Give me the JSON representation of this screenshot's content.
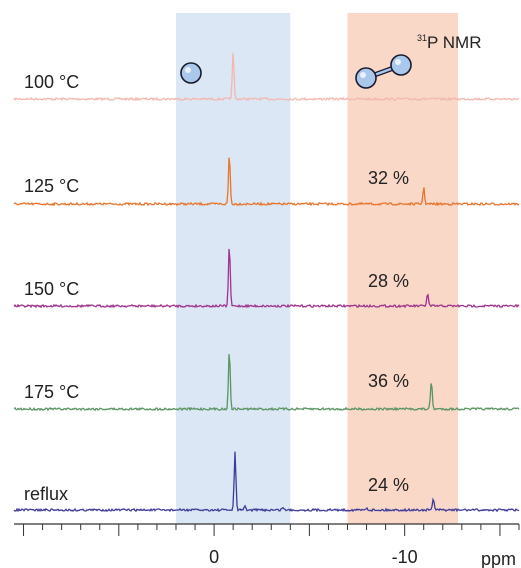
{
  "chart_data": {
    "type": "line",
    "title": "",
    "nucleus_label": {
      "sup": "31",
      "text": "P NMR"
    },
    "xlabel": "ppm",
    "xlim": [
      10.5,
      -16
    ],
    "x_direction": "reversed",
    "x_ticks": [
      {
        "value": 0,
        "label": "0"
      },
      {
        "value": -10,
        "label": "-10"
      }
    ],
    "highlight_regions": [
      {
        "name": "monomer",
        "x_range": [
          2,
          -4
        ],
        "color": "#dbe7f4",
        "icon": "single-sphere-icon"
      },
      {
        "name": "dimer",
        "x_range": [
          -7,
          -12.8
        ],
        "color": "#f9d8c8",
        "icon": "two-spheres-dimer-icon"
      }
    ],
    "series": [
      {
        "name": "100 °C",
        "color": "#f2b8b0",
        "peaks": [
          {
            "x": -1.0,
            "height": 1.0
          }
        ],
        "percent": ""
      },
      {
        "name": "125 °C",
        "color": "#e8742c",
        "peaks": [
          {
            "x": -0.8,
            "height": 1.0
          },
          {
            "x": -11.0,
            "height": 0.33
          }
        ],
        "percent": "32 %"
      },
      {
        "name": "150 °C",
        "color": "#a0338f",
        "peaks": [
          {
            "x": -0.8,
            "height": 1.0
          },
          {
            "x": -11.2,
            "height": 0.2
          }
        ],
        "percent": "28 %"
      },
      {
        "name": "175 °C",
        "color": "#5a9462",
        "peaks": [
          {
            "x": -0.8,
            "height": 1.0
          },
          {
            "x": -11.4,
            "height": 0.47
          }
        ],
        "percent": "36 %"
      },
      {
        "name": "reflux",
        "color": "#3f3a9a",
        "peaks": [
          {
            "x": -1.1,
            "height": 1.0
          },
          {
            "x": -1.6,
            "height": 0.07
          },
          {
            "x": -3.6,
            "height": 0.05
          },
          {
            "x": -8.0,
            "height": 0.04
          },
          {
            "x": -11.5,
            "height": 0.2
          }
        ],
        "percent": "24 %"
      }
    ],
    "grid": false,
    "legend": "none"
  }
}
